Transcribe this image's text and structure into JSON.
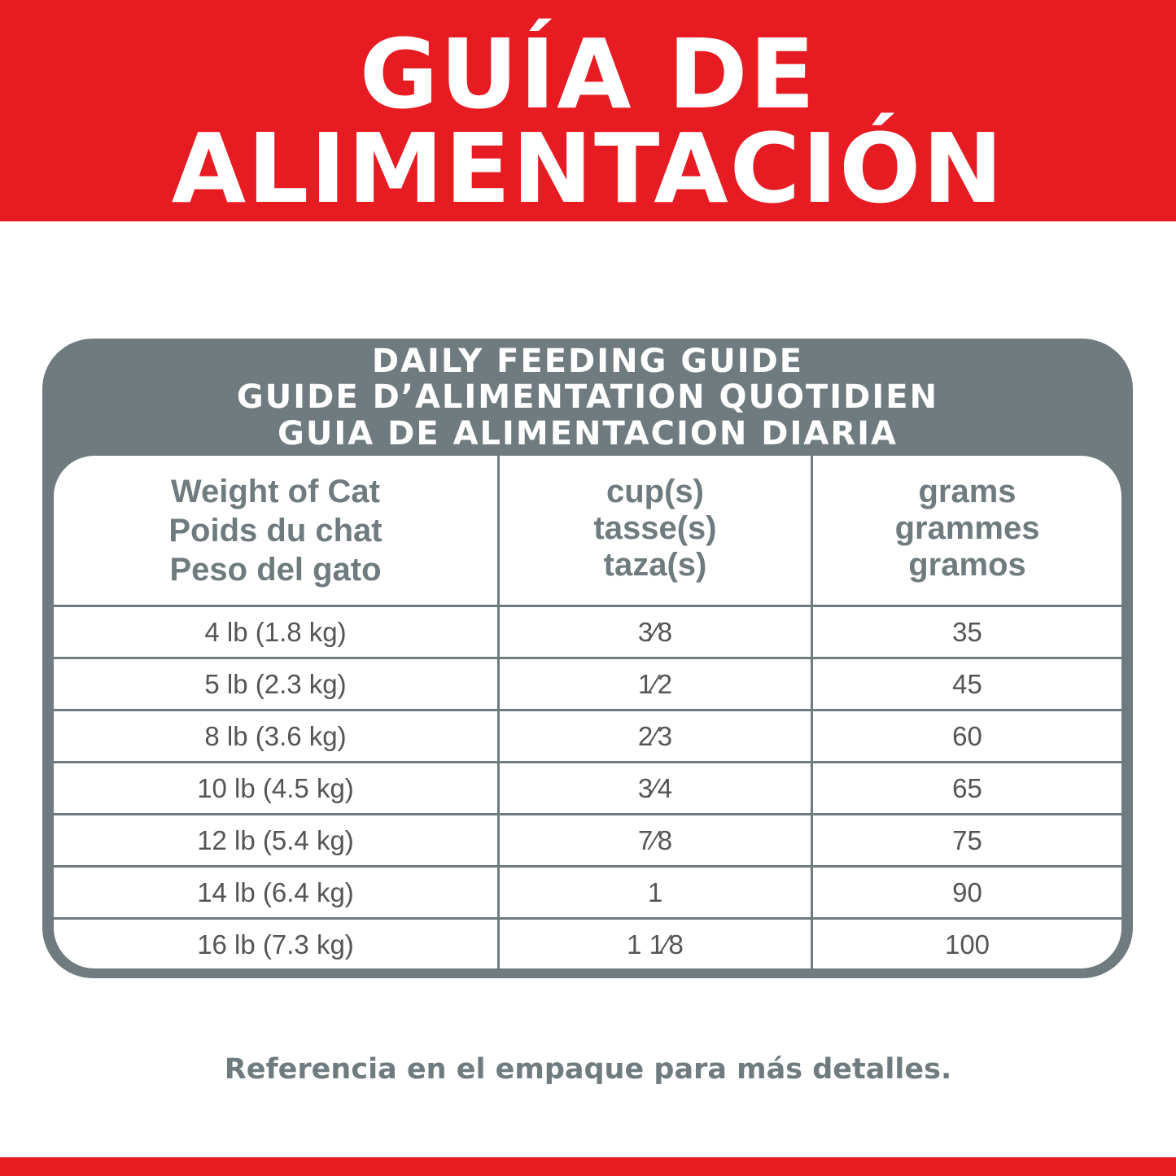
{
  "banner": {
    "line1": "GUÍA DE",
    "line2": "ALIMENTACIÓN",
    "color": "#e71c23"
  },
  "guide": {
    "titles": [
      "DAILY FEEDING GUIDE",
      "GUIDE D’ALIMENTATION QUOTIDIEN",
      "GUIA DE ALIMENTACION DIARIA"
    ],
    "headers": [
      [
        "Weight of Cat",
        "Poids du chat",
        "Peso del gato"
      ],
      [
        "cup(s)",
        "tasse(s)",
        "taza(s)"
      ],
      [
        "grams",
        "grammes",
        "gramos"
      ]
    ],
    "rows": [
      [
        "4 lb (1.8 kg)",
        "3⁄8",
        "35"
      ],
      [
        "5 lb (2.3 kg)",
        "1⁄2",
        "45"
      ],
      [
        "8 lb (3.6 kg)",
        "2⁄3",
        "60"
      ],
      [
        "10 lb (4.5 kg)",
        "3⁄4",
        "65"
      ],
      [
        "12 lb (5.4 kg)",
        "7⁄8",
        "75"
      ],
      [
        "14 lb (6.4 kg)",
        "1",
        "90"
      ],
      [
        "16 lb (7.3 kg)",
        "1 1⁄8",
        "100"
      ]
    ]
  },
  "footer": "Referencia en el empaque para más detalles."
}
